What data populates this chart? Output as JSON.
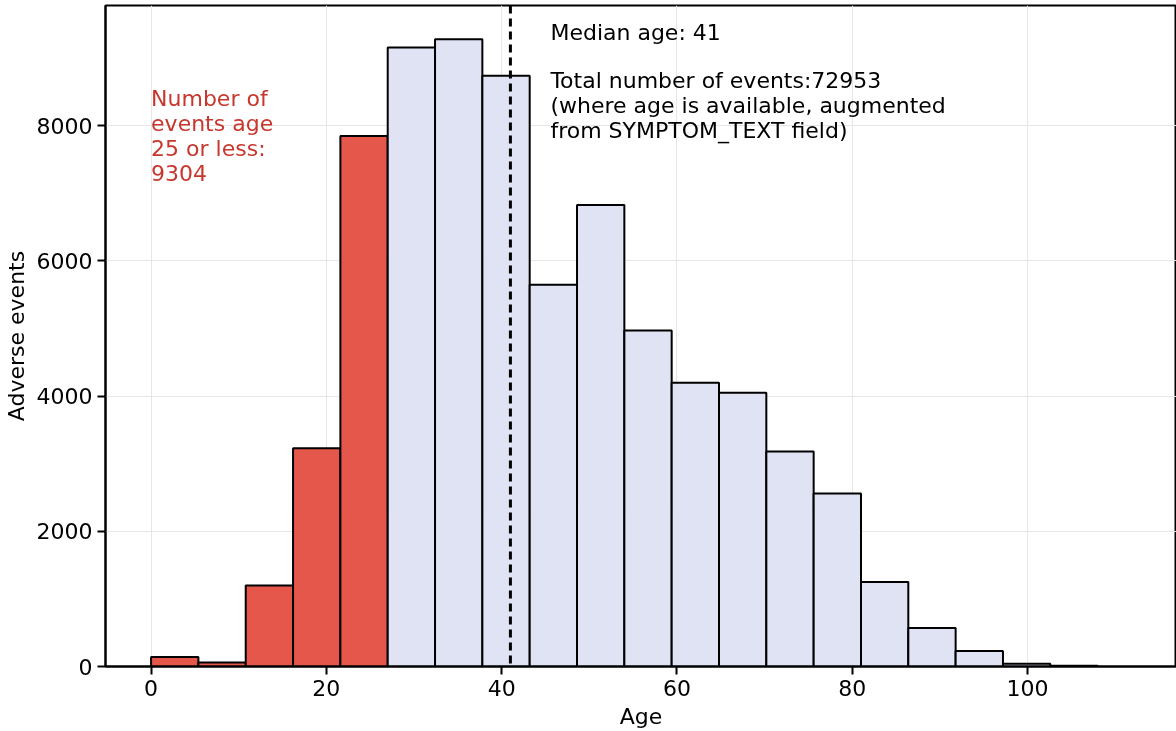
{
  "chart_data": {
    "type": "histogram",
    "xlabel": "Age",
    "ylabel": "Adverse events",
    "bins": [
      0,
      5.4,
      10.8,
      16.2,
      21.6,
      27,
      32.4,
      37.8,
      43.2,
      48.6,
      54,
      59.4,
      64.8,
      70.2,
      75.6,
      81,
      86.4,
      91.8,
      97.2,
      102.6,
      108
    ],
    "values": [
      140,
      60,
      1200,
      3230,
      7850,
      9160,
      9280,
      8740,
      5650,
      6830,
      4970,
      4200,
      4050,
      3180,
      2560,
      1250,
      570,
      230,
      40,
      10
    ],
    "colors": [
      "#e5564b",
      "#e5564b",
      "#e5564b",
      "#e5564b",
      "#e5564b",
      "#dfe3f3",
      "#dfe3f3",
      "#dfe3f3",
      "#dfe3f3",
      "#dfe3f3",
      "#dfe3f3",
      "#dfe3f3",
      "#dfe3f3",
      "#dfe3f3",
      "#dfe3f3",
      "#dfe3f3",
      "#dfe3f3",
      "#dfe3f3",
      "#dfe3f3",
      "#dfe3f3"
    ],
    "xlim": [
      -5.2,
      117
    ],
    "ylim": [
      0,
      9780
    ],
    "xticks": [
      0,
      20,
      40,
      60,
      80,
      100
    ],
    "yticks": [
      0,
      2000,
      4000,
      6000,
      8000
    ],
    "grid": true,
    "ref_lines": [
      {
        "axis": "x",
        "value": 41,
        "label": "Median age: 41",
        "color": "#000000",
        "line_style": "dashed"
      }
    ],
    "annotations": [
      "Number of\nevents age\n25 or less:\n9304",
      "Total number of events:72953\n(where age is available, augmented\nfrom SYMPTOM_TEXT field)"
    ]
  }
}
